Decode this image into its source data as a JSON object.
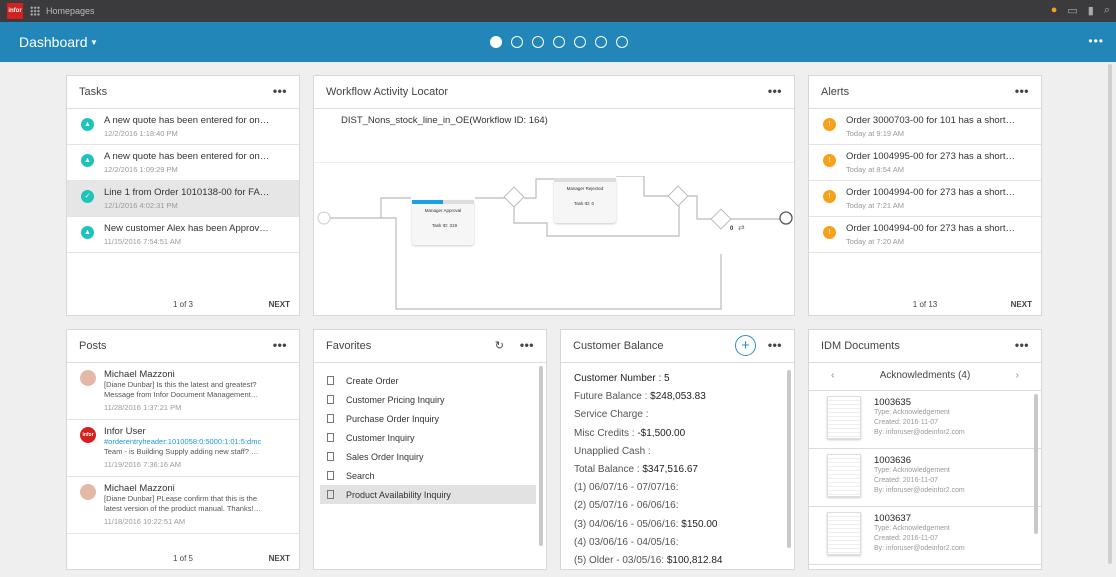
{
  "topbar": {
    "logo": "infor",
    "title": "Homepages",
    "icons": [
      "user-icon",
      "chat-icon",
      "bookmark-icon",
      "search-icon"
    ],
    "accent": "#f6a21a"
  },
  "header": {
    "title": "Dashboard",
    "page_count": 7,
    "active_page": 1,
    "color": "#2286b8"
  },
  "tasks": {
    "title": "Tasks",
    "items": [
      {
        "text": "A new quote has been entered for on…",
        "date": "12/2/2016 1:18:40 PM",
        "icon": "bell-icon"
      },
      {
        "text": "A new quote has been entered for on…",
        "date": "12/2/2016 1:09:29 PM",
        "icon": "bell-icon"
      },
      {
        "text": "Line 1 from Order 1010138-00 for FA…",
        "date": "12/1/2016 4:02:31 PM",
        "icon": "clipboard-check-icon"
      },
      {
        "text": "New customer Alex has been Approv…",
        "date": "11/15/2016 7:54:51 AM",
        "icon": "bell-icon"
      }
    ],
    "page": "1 of 3",
    "next": "NEXT"
  },
  "workflow": {
    "title": "Workflow Activity Locator",
    "name": "DIST_Nons_stock_line_in_OE(Workflow ID: 164)",
    "nodes": [
      {
        "label": "Manager Approval",
        "task": "Task ID: 319",
        "progress": 0.5
      },
      {
        "label": "Manager Rejected",
        "task": "Task ID: 0"
      }
    ],
    "counter": "0"
  },
  "alerts": {
    "title": "Alerts",
    "items": [
      {
        "text": "Order 3000703-00 for 101 has a short…",
        "date": "Today at 9:19 AM"
      },
      {
        "text": "Order 1004995-00 for 273 has a short…",
        "date": "Today at 8:54 AM"
      },
      {
        "text": "Order 1004994-00 for 273 has a short…",
        "date": "Today at 7:21 AM"
      },
      {
        "text": "Order 1004994-00 for 273 has a short…",
        "date": "Today at 7:20 AM"
      }
    ],
    "page": "1 of 13",
    "next": "NEXT"
  },
  "posts": {
    "title": "Posts",
    "items": [
      {
        "author": "Michael Mazzoni",
        "line1": "[Diane Dunbar] Is this the latest and greatest?",
        "line2": "Message from Infor Document Management…",
        "date": "11/28/2016 1:37:21 PM"
      },
      {
        "author": "Infor User",
        "line1": "#orderentryheader:1010058:0:5000:1:01:5:dmc",
        "line2": "Team - is Building Supply adding new staff? …",
        "date": "11/19/2016 7:36:16 AM"
      },
      {
        "author": "Michael Mazzoni",
        "line1": "[Diane Dunbar] PLease confirm that this is the",
        "line2": "latest version of the product manual. Thanks!…",
        "date": "11/18/2016 10:22:51 AM"
      }
    ],
    "page": "1 of 5",
    "next": "NEXT"
  },
  "favorites": {
    "title": "Favorites",
    "items": [
      "Create Order",
      "Customer Pricing Inquiry",
      "Purchase Order Inquiry",
      "Customer Inquiry",
      "Sales Order Inquiry",
      "Search",
      "Product Availability Inquiry"
    ]
  },
  "balance": {
    "title": "Customer Balance",
    "rows": [
      {
        "label": "Customer Number : ",
        "value": "5"
      },
      {
        "label": "Future Balance : ",
        "value": "$248,053.83"
      },
      {
        "label": "Service Charge : ",
        "value": ""
      },
      {
        "label": "Misc Credits : ",
        "value": "-$1,500.00"
      },
      {
        "label": "Unapplied Cash : ",
        "value": ""
      },
      {
        "label": "Total Balance : ",
        "value": "$347,516.67"
      },
      {
        "label": "(1) 06/07/16 - 07/07/16: ",
        "value": ""
      },
      {
        "label": "(2) 05/07/16 - 06/06/16: ",
        "value": ""
      },
      {
        "label": "(3) 04/06/16 - 05/06/16: ",
        "value": "$150.00"
      },
      {
        "label": "(4) 03/06/16 - 04/05/16: ",
        "value": ""
      },
      {
        "label": "(5) Older - 03/05/16: ",
        "value": "$100,812.84"
      }
    ]
  },
  "idm": {
    "title": "IDM Documents",
    "category": "Acknowledments (4)",
    "docs": [
      {
        "id": "1003635",
        "type": "Type: Acknowledgement",
        "created": "Created: 2016-11-07",
        "by": "By: inforuser@odeinfor2.com"
      },
      {
        "id": "1003636",
        "type": "Type: Acknowledgement",
        "created": "Created: 2016-11-07",
        "by": "By: inforuser@odeinfor2.com"
      },
      {
        "id": "1003637",
        "type": "Type: Acknowledgement",
        "created": "Created: 2016-11-07",
        "by": "By: inforuser@odeinfor2.com"
      }
    ]
  }
}
